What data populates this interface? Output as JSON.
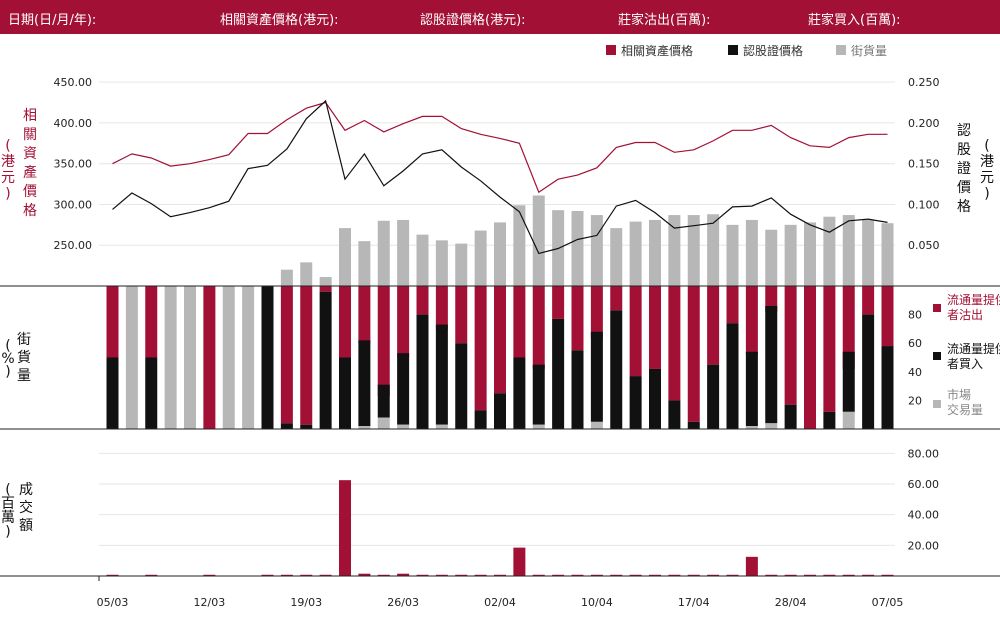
{
  "header": {
    "date_label": "日期(日/月/年):",
    "underlying_label": "相關資產價格(港元):",
    "warrant_label": "認股證價格(港元):",
    "mm_sell_label": "莊家沽出(百萬):",
    "mm_buy_label": "莊家買入(百萬):"
  },
  "colors": {
    "header_bg": "#a31035",
    "red": "#a31035",
    "black": "#111111",
    "grey": "#b7b7b7"
  },
  "legend": {
    "underlying": "相關資產價格",
    "warrant": "認股證價格",
    "outstanding": "街貨量"
  },
  "axis_labels": {
    "left_top": "(港元)相關資產價格",
    "right_top": "(港元)認股證價格",
    "left_mid": "(%)街貨量",
    "left_bottom": "(百萬)成交額"
  },
  "mid_legend": {
    "sell": "流通量提供者沽出",
    "buy": "流通量提供者買入",
    "market": "市場交易量"
  },
  "chart_data": {
    "type": "line",
    "x_ticks": [
      "05/03",
      "12/03",
      "19/03",
      "26/03",
      "02/04",
      "10/04",
      "17/04",
      "28/04",
      "07/05"
    ],
    "x_tick_index": [
      0,
      5,
      10,
      15,
      20,
      25,
      30,
      35,
      40
    ],
    "underlying": {
      "name": "相關資產價格",
      "ylim": [
        200,
        460
      ],
      "ticks": [
        "250.00",
        "300.00",
        "350.00",
        "400.00",
        "450.00"
      ],
      "values": [
        350,
        362,
        357,
        347,
        350,
        355,
        361,
        387,
        387,
        404,
        418,
        425,
        391,
        403,
        389,
        399,
        408,
        408,
        393,
        386,
        381,
        375,
        315,
        331,
        336,
        345,
        370,
        376,
        376,
        364,
        367,
        378,
        391,
        391,
        397,
        382,
        372,
        370,
        382,
        386,
        386
      ]
    },
    "warrant": {
      "name": "認股證價格",
      "ylim": [
        0,
        0.26
      ],
      "ticks": [
        "0.050",
        "0.100",
        "0.150",
        "0.200",
        "0.250"
      ],
      "values": [
        0.094,
        0.114,
        0.101,
        0.085,
        0.09,
        0.096,
        0.104,
        0.144,
        0.148,
        0.168,
        0.205,
        0.227,
        0.131,
        0.162,
        0.123,
        0.141,
        0.162,
        0.167,
        0.146,
        0.129,
        0.109,
        0.091,
        0.04,
        0.046,
        0.057,
        0.062,
        0.098,
        0.105,
        0.09,
        0.071,
        0.074,
        0.077,
        0.097,
        0.098,
        0.108,
        0.088,
        0.075,
        0.066,
        0.08,
        0.082,
        0.078
      ]
    },
    "outstanding": {
      "name": "街貨量",
      "ylim": [
        0,
        0.26
      ],
      "values": [
        0,
        0,
        0,
        0,
        0,
        0,
        0,
        0,
        0,
        0.02,
        0.029,
        0.011,
        0.071,
        0.055,
        0.08,
        0.081,
        0.063,
        0.056,
        0.052,
        0.068,
        0.078,
        0.099,
        0.111,
        0.093,
        0.092,
        0.087,
        0.071,
        0.079,
        0.081,
        0.087,
        0.087,
        0.088,
        0.075,
        0.081,
        0.069,
        0.075,
        0.078,
        0.085,
        0.087,
        0.081,
        0.077
      ]
    },
    "flow_pct": {
      "ylim": [
        0,
        100
      ],
      "ticks": [
        "20",
        "40",
        "60",
        "80"
      ],
      "sell": [
        50,
        0,
        50,
        0,
        0,
        100,
        0,
        0,
        0,
        96,
        97,
        4,
        50,
        40,
        77,
        50,
        20,
        30,
        40,
        87,
        75,
        50,
        58,
        23,
        45,
        37,
        17,
        63,
        58,
        80,
        95,
        55,
        26,
        48,
        18,
        83,
        100,
        88,
        58,
        20,
        42
      ],
      "buy": [
        50,
        0,
        50,
        0,
        0,
        0,
        0,
        0,
        100,
        4,
        3,
        96,
        50,
        60,
        23,
        50,
        80,
        70,
        60,
        13,
        25,
        50,
        42,
        77,
        55,
        63,
        83,
        37,
        42,
        20,
        5,
        45,
        74,
        52,
        82,
        17,
        0,
        12,
        42,
        80,
        58
      ],
      "market": [
        0,
        100,
        0,
        100,
        100,
        0,
        100,
        100,
        0,
        0,
        0,
        0,
        0,
        2,
        8,
        3,
        0,
        3,
        0,
        0,
        0,
        0,
        3,
        0,
        0,
        5,
        0,
        0,
        0,
        0,
        0,
        0,
        0,
        2,
        4,
        0,
        0,
        0,
        12,
        0,
        0
      ]
    },
    "turnover": {
      "name": "成交額",
      "ylim": [
        0,
        90
      ],
      "ticks": [
        "20.00",
        "40.00",
        "60.00",
        "80.00"
      ],
      "values": [
        0.8,
        0,
        0.8,
        0,
        0,
        0.8,
        0,
        0,
        0.8,
        0.8,
        0.8,
        0.8,
        62.5,
        1.5,
        0.8,
        1.5,
        0.8,
        0.8,
        0.8,
        0.8,
        0.8,
        18.5,
        0.8,
        0.8,
        0.8,
        0.8,
        0.8,
        0.8,
        0.8,
        0.8,
        0.8,
        0.8,
        0.8,
        12.5,
        0.8,
        0.8,
        0.8,
        0.8,
        0.8,
        0.8,
        0.8
      ]
    }
  }
}
